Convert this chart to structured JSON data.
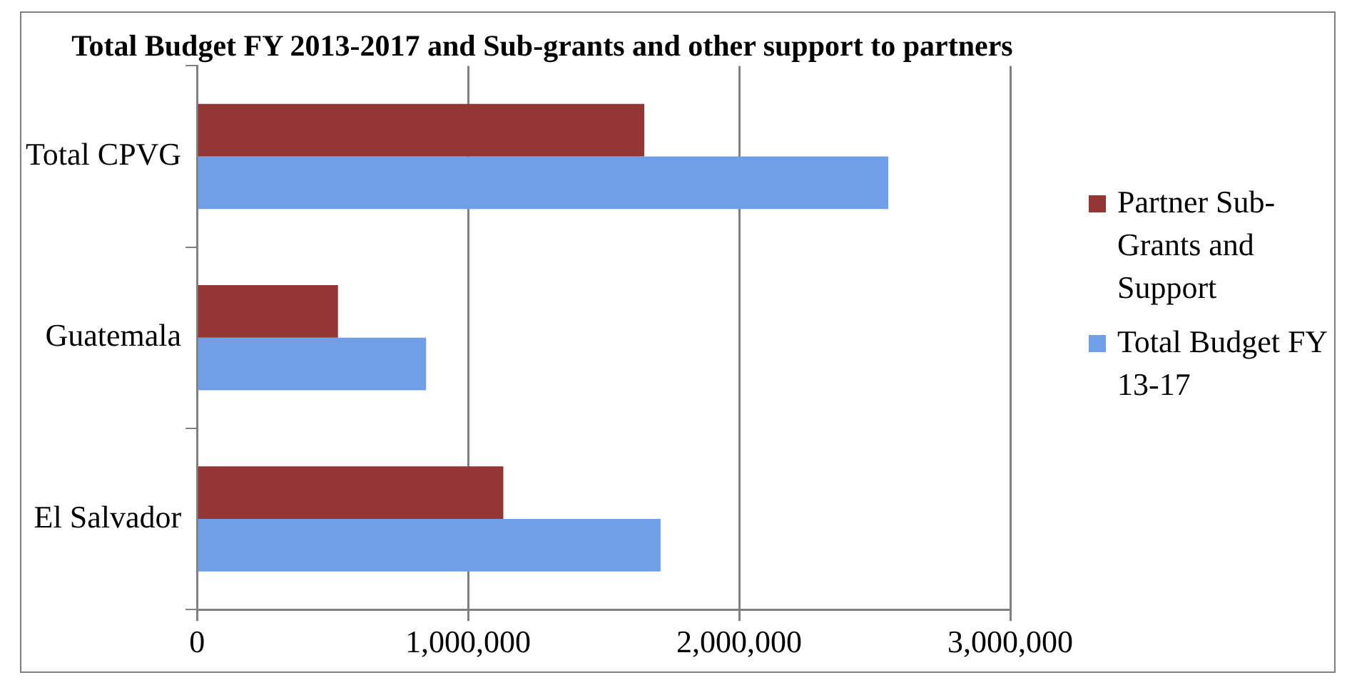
{
  "chart_data": {
    "type": "bar",
    "orientation": "horizontal",
    "title": "Total Budget FY 2013-2017 and Sub-grants and other support to partners",
    "categories": [
      "Total CPVG",
      "Guatemala",
      "El Salvador"
    ],
    "series": [
      {
        "name": "Partner Sub-Grants and Support",
        "color": "#943634",
        "values": [
          1650000,
          520000,
          1130000
        ]
      },
      {
        "name": "Total Budget FY 13-17",
        "color": "#6f9fe6",
        "values": [
          2550000,
          845000,
          1710000
        ]
      }
    ],
    "xlim": [
      0,
      3000000
    ],
    "xticks": [
      0,
      {
        "value": 1000000,
        "label": "1,000,000"
      },
      {
        "value": 2000000,
        "label": "2,000,000"
      },
      {
        "value": 3000000,
        "label": "3,000,000"
      }
    ],
    "grid": "x",
    "legend": "right"
  }
}
